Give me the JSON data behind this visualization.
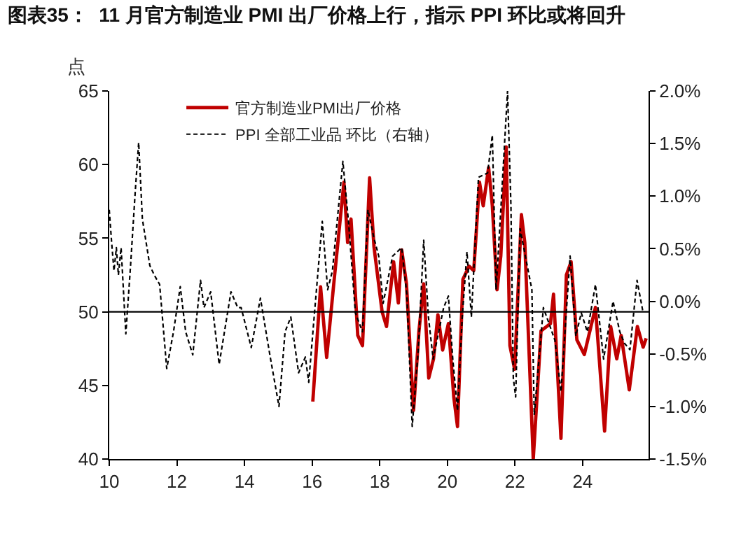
{
  "chart_data": {
    "type": "line",
    "title": "图表35：  11 月官方制造业 PMI 出厂价格上行，指示 PPI 环比或将回升",
    "ylabel": "点",
    "legend": "top",
    "grid": false,
    "xlim": [
      2010,
      2025.95
    ],
    "xticks": [
      {
        "value": 2010,
        "label": "10"
      },
      {
        "value": 2012,
        "label": "12"
      },
      {
        "value": 2014,
        "label": "14"
      },
      {
        "value": 2016,
        "label": "16"
      },
      {
        "value": 2018,
        "label": "18"
      },
      {
        "value": 2020,
        "label": "20"
      },
      {
        "value": 2022,
        "label": "22"
      },
      {
        "value": 2024,
        "label": "24"
      }
    ],
    "ylim": [
      40,
      65
    ],
    "yticks": [
      40,
      45,
      50,
      55,
      60,
      65
    ],
    "y2lim": [
      -1.5,
      2.0
    ],
    "y2ticks": [
      {
        "value": -1.5,
        "label": "-1.5%"
      },
      {
        "value": -1.0,
        "label": "-1.0%"
      },
      {
        "value": -0.5,
        "label": "-0.5%"
      },
      {
        "value": 0,
        "label": "0.0%"
      },
      {
        "value": 0.5,
        "label": "0.5%"
      },
      {
        "value": 1.0,
        "label": "1.0%"
      },
      {
        "value": 1.5,
        "label": "1.5%"
      },
      {
        "value": 2.0,
        "label": "2.0%"
      }
    ],
    "ref_lines": [
      {
        "axis": "y",
        "value": 50,
        "color": "#000000"
      }
    ],
    "series": [
      {
        "name": "官方制造业PMI出厂价格",
        "color": "#c00000",
        "line_style": "solid",
        "x": [
          2016.02,
          2016.25,
          2016.43,
          2016.64,
          2016.94,
          2017.05,
          2017.15,
          2017.35,
          2017.49,
          2017.7,
          2017.83,
          2018.07,
          2018.2,
          2018.41,
          2018.55,
          2018.65,
          2018.79,
          2019.0,
          2019.16,
          2019.3,
          2019.45,
          2019.59,
          2019.72,
          2019.86,
          2020.03,
          2020.19,
          2020.3,
          2020.46,
          2020.64,
          2020.78,
          2020.95,
          2021.06,
          2021.22,
          2021.33,
          2021.47,
          2021.58,
          2021.74,
          2021.85,
          2021.99,
          2022.19,
          2022.29,
          2022.54,
          2022.77,
          2023.05,
          2023.14,
          2023.36,
          2023.52,
          2023.66,
          2023.83,
          2024.05,
          2024.38,
          2024.65,
          2024.83,
          2025.01,
          2025.14,
          2025.38,
          2025.62,
          2025.79,
          2025.88
        ],
        "values": [
          43.9,
          51.7,
          46.9,
          51.9,
          58.8,
          54.7,
          56.3,
          48.4,
          47.7,
          59.1,
          54.4,
          50.0,
          49.0,
          53.4,
          50.6,
          54.2,
          51.9,
          43.3,
          48.7,
          51.9,
          45.5,
          46.8,
          49.8,
          47.4,
          49.2,
          44.2,
          42.2,
          52.2,
          53.1,
          52.8,
          58.8,
          57.2,
          59.8,
          57.2,
          51.5,
          53.8,
          61.2,
          47.7,
          46.1,
          56.6,
          54.7,
          40.0,
          48.7,
          49.2,
          51.2,
          41.4,
          52.5,
          53.4,
          48.1,
          47.1,
          50.3,
          41.9,
          49.0,
          46.8,
          48.4,
          44.7,
          49.0,
          47.6,
          48.2
        ]
      },
      {
        "name": "PPI 全部工业品 环比（右轴）",
        "color": "#000000",
        "line_style": "dashed",
        "axis": "y2",
        "x": [
          2010.0,
          2010.07,
          2010.14,
          2010.21,
          2010.27,
          2010.35,
          2010.49,
          2010.63,
          2010.77,
          2010.87,
          2010.98,
          2011.2,
          2011.33,
          2011.49,
          2011.7,
          2011.9,
          2012.1,
          2012.26,
          2012.47,
          2012.7,
          2012.8,
          2013.0,
          2013.25,
          2013.6,
          2013.8,
          2013.9,
          2014.2,
          2014.47,
          2014.75,
          2015.02,
          2015.2,
          2015.37,
          2015.6,
          2015.8,
          2015.9,
          2016.07,
          2016.3,
          2016.46,
          2016.6,
          2016.91,
          2017.08,
          2017.28,
          2017.49,
          2017.65,
          2017.83,
          2017.97,
          2018.1,
          2018.38,
          2018.65,
          2018.8,
          2018.96,
          2019.14,
          2019.3,
          2019.44,
          2019.58,
          2019.89,
          2020.03,
          2020.16,
          2020.3,
          2020.44,
          2020.58,
          2020.71,
          2020.92,
          2021.19,
          2021.33,
          2021.44,
          2021.58,
          2021.78,
          2021.88,
          2021.95,
          2022.02,
          2022.15,
          2022.5,
          2022.57,
          2022.84,
          2023.18,
          2023.36,
          2023.63,
          2023.8,
          2023.96,
          2024.14,
          2024.38,
          2024.62,
          2024.9,
          2025.1,
          2025.24,
          2025.4,
          2025.61,
          2025.79
        ],
        "values": [
          0.87,
          0.56,
          0.29,
          0.51,
          0.25,
          0.51,
          -0.31,
          0.34,
          1.05,
          1.51,
          0.78,
          0.34,
          0.25,
          0.16,
          -0.64,
          -0.29,
          0.14,
          -0.29,
          -0.51,
          0.2,
          -0.06,
          0.09,
          -0.6,
          0.09,
          -0.06,
          -0.06,
          -0.44,
          0.03,
          -0.51,
          -1.0,
          -0.29,
          -0.15,
          -0.68,
          -0.53,
          -0.77,
          -0.11,
          0.76,
          0.11,
          0.29,
          1.33,
          0.74,
          -0.11,
          -0.29,
          0.87,
          0.6,
          0.43,
          -0.02,
          0.43,
          0.51,
          0.07,
          -1.19,
          -0.46,
          0.58,
          -0.15,
          -0.55,
          -0.06,
          0.05,
          -0.55,
          -1.04,
          -0.15,
          0.47,
          -0.15,
          1.18,
          1.22,
          1.58,
          0.11,
          0.87,
          2.0,
          0.91,
          -0.73,
          -0.91,
          0.69,
          0.11,
          -1.08,
          -0.06,
          -0.37,
          -0.86,
          0.43,
          -0.33,
          -0.11,
          -0.29,
          0.16,
          -0.55,
          0.0,
          -0.29,
          -0.4,
          -0.46,
          0.2,
          -0.11
        ]
      }
    ]
  }
}
